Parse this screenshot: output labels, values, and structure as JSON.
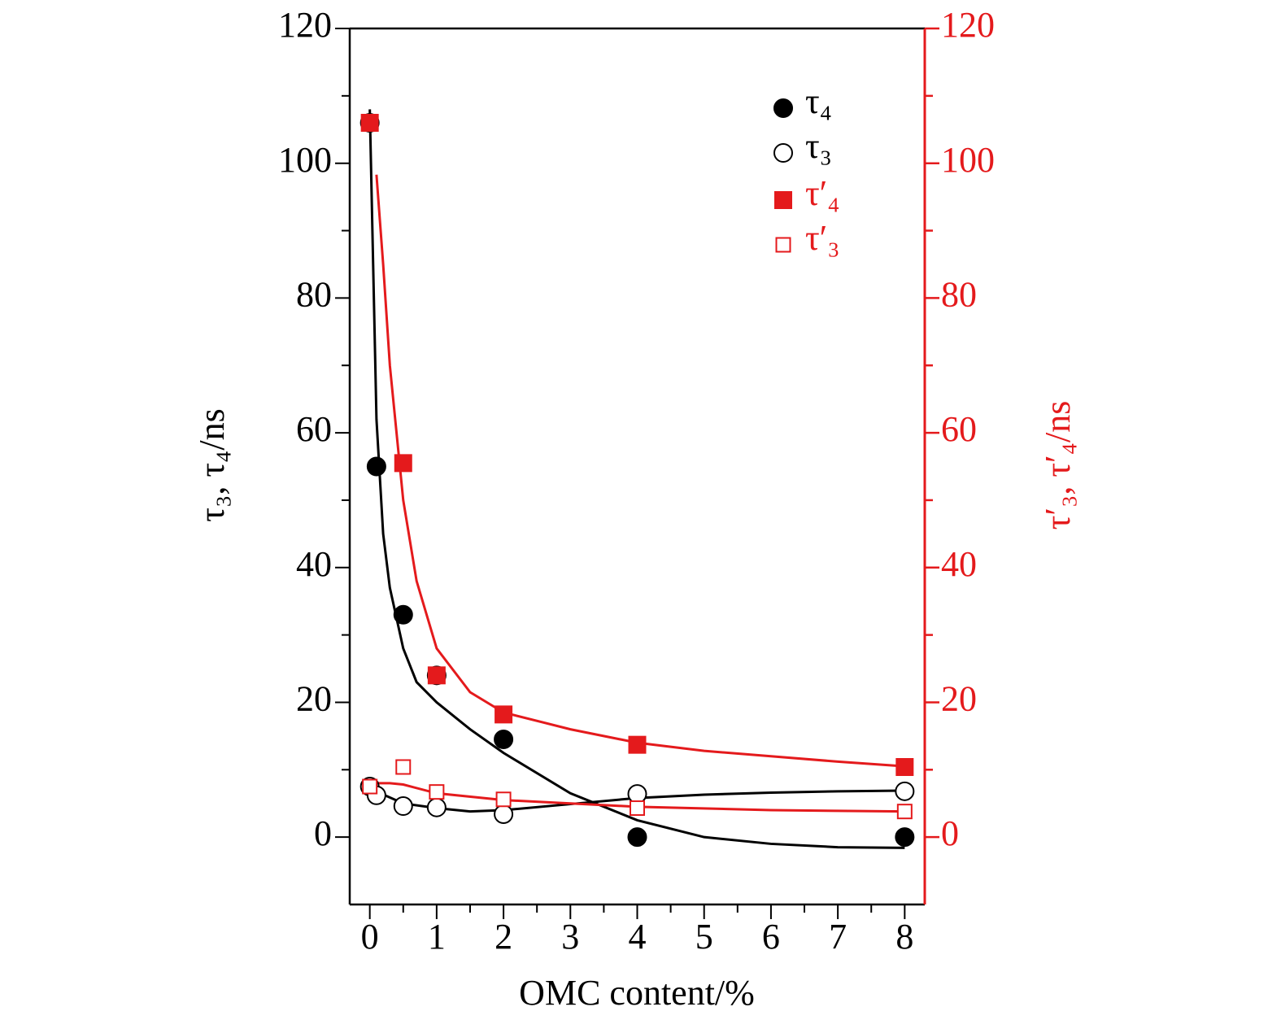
{
  "chart_data": {
    "type": "scatter",
    "xlabel": "OMC content/%",
    "ylabel": "τ₃, τ₄/ns",
    "y2label": "τ′₃, τ′₄/ns",
    "xlim": [
      -0.3,
      8.3
    ],
    "ylim": [
      -10,
      120
    ],
    "y2lim": [
      -10,
      120
    ],
    "xticks": [
      0,
      1,
      2,
      3,
      4,
      5,
      6,
      7,
      8
    ],
    "yticks": [
      0,
      20,
      40,
      60,
      80,
      100,
      120
    ],
    "y2ticks": [
      0,
      20,
      40,
      60,
      80,
      100,
      120
    ],
    "y2color": "#e41a1c",
    "series": [
      {
        "name": "τ₄",
        "color": "#000000",
        "marker": "circle",
        "filled": true,
        "x": [
          0,
          0.1,
          0.5,
          1,
          2,
          4,
          8
        ],
        "values": [
          106,
          55,
          33,
          24,
          14.5,
          0,
          0
        ]
      },
      {
        "name": "τ₃",
        "color": "#000000",
        "marker": "circle",
        "filled": false,
        "x": [
          0,
          0.1,
          0.5,
          1,
          2,
          4,
          8
        ],
        "values": [
          7.5,
          6.2,
          4.6,
          4.4,
          3.4,
          6.4,
          6.8
        ]
      },
      {
        "name": "τ′₄",
        "color": "#e41a1c",
        "marker": "square",
        "filled": true,
        "axis": "y2",
        "x": [
          0,
          0.5,
          1,
          2,
          4,
          8
        ],
        "values": [
          106,
          55.5,
          24,
          18.2,
          13.7,
          10.4
        ]
      },
      {
        "name": "τ′₃",
        "color": "#e41a1c",
        "marker": "square",
        "filled": false,
        "axis": "y2",
        "x": [
          0,
          0.5,
          1,
          2,
          4,
          8
        ],
        "values": [
          7.5,
          10.4,
          6.7,
          5.6,
          4.3,
          3.8
        ]
      }
    ],
    "fits": [
      {
        "color": "#000000",
        "x": [
          0,
          0.05,
          0.1,
          0.2,
          0.3,
          0.5,
          0.7,
          1,
          1.5,
          2,
          3,
          4,
          5,
          6,
          7,
          8
        ],
        "values": [
          108,
          85,
          62,
          45,
          37,
          28,
          23,
          20,
          16,
          12.5,
          6.5,
          2.5,
          0,
          -1,
          -1.5,
          -1.6
        ]
      },
      {
        "color": "#000000",
        "x": [
          0,
          0.5,
          1,
          1.5,
          2,
          3,
          4,
          5,
          6,
          7,
          8
        ],
        "values": [
          7.2,
          5,
          4.3,
          3.8,
          4,
          4.9,
          5.8,
          6.3,
          6.6,
          6.8,
          6.9
        ]
      },
      {
        "color": "#e41a1c",
        "axis": "y2",
        "x": [
          0.1,
          0.2,
          0.3,
          0.5,
          0.7,
          1,
          1.5,
          2,
          3,
          4,
          5,
          6,
          7,
          8
        ],
        "values": [
          98.3,
          85,
          70,
          50,
          38,
          28,
          21.5,
          18.5,
          16,
          14,
          12.8,
          12,
          11.2,
          10.5
        ]
      },
      {
        "color": "#e41a1c",
        "axis": "y2",
        "x": [
          0,
          0.3,
          0.5,
          1,
          2,
          3,
          4,
          6,
          8
        ],
        "values": [
          8,
          8,
          7.8,
          6.5,
          5.5,
          5,
          4.5,
          4,
          3.8
        ]
      }
    ]
  }
}
